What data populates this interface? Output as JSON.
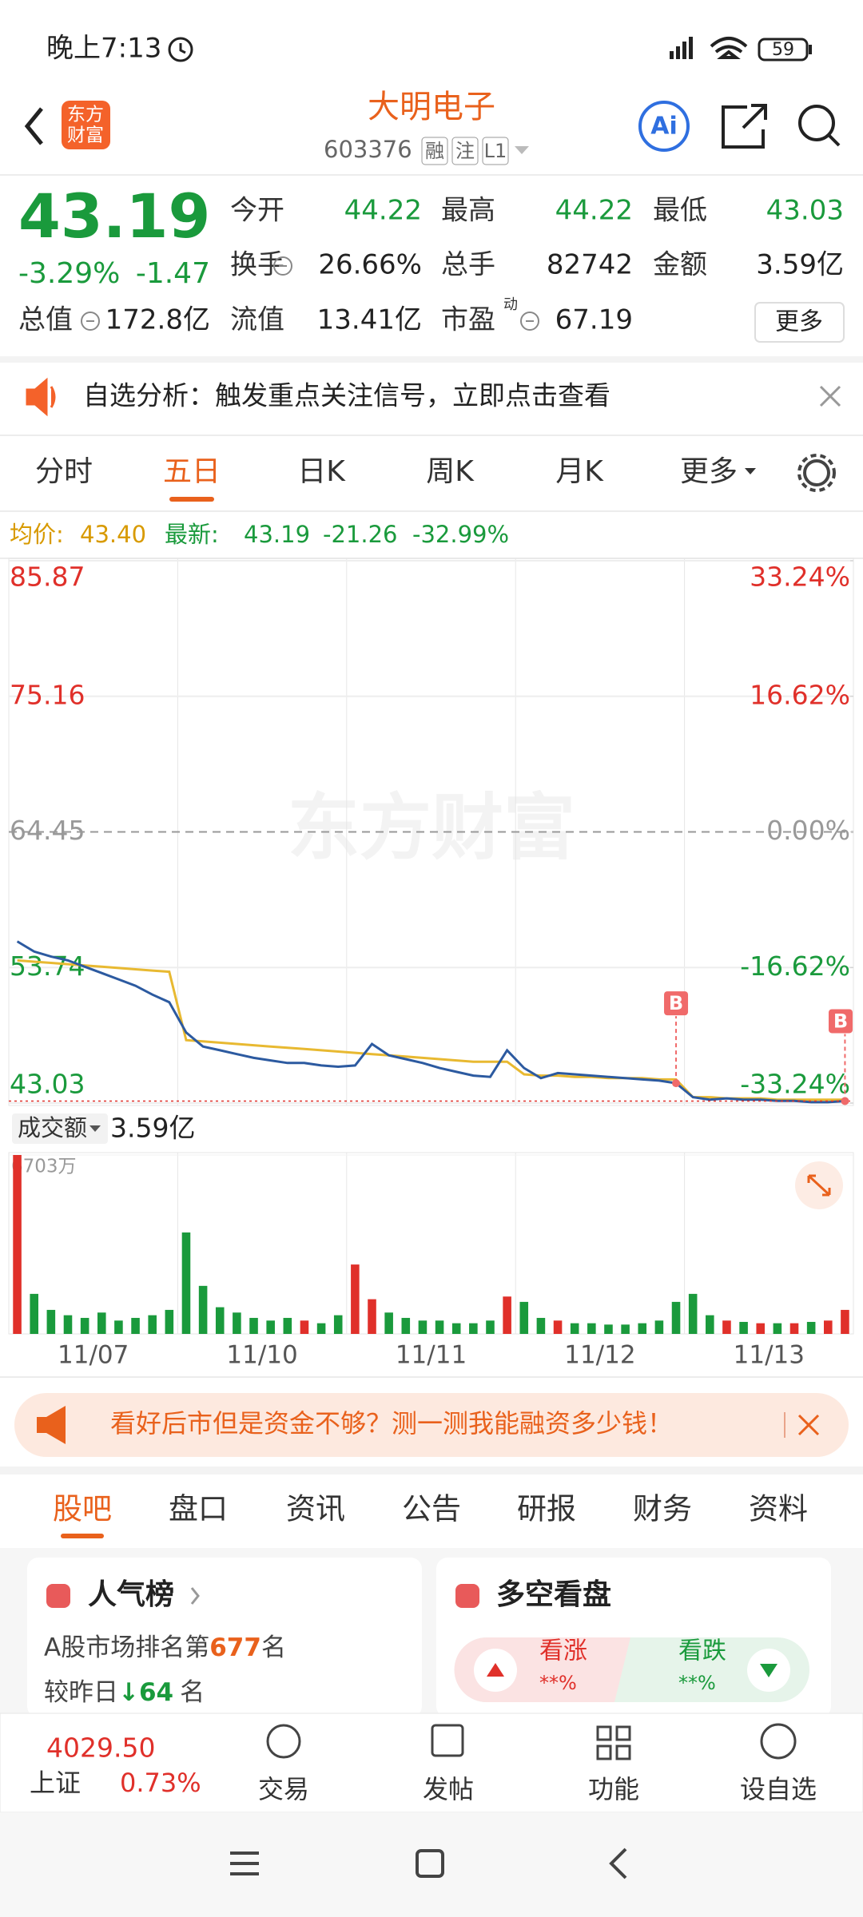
{
  "status_bar": {
    "time": "晚上7:13",
    "battery": "59"
  },
  "header": {
    "logo": [
      "东方",
      "财富"
    ],
    "title": "大明电子",
    "code": "603376",
    "badges": [
      "融",
      "注",
      "L1"
    ],
    "ai": "Ai"
  },
  "quote": {
    "price": "43.19",
    "change_pct": "-3.29%",
    "change": "-1.47",
    "fields": [
      {
        "label": "今开",
        "value": "44.22"
      },
      {
        "label": "最高",
        "value": "44.22"
      },
      {
        "label": "最低",
        "value": "43.03"
      },
      {
        "label": "换手",
        "value": "26.66%"
      },
      {
        "label": "总手",
        "value": "82742"
      },
      {
        "label": "金额",
        "value": "3.59亿"
      },
      {
        "label": "总值",
        "value": "172.8亿"
      },
      {
        "label": "流值",
        "value": "13.41亿"
      },
      {
        "label": "市盈",
        "value": "67.19"
      }
    ],
    "pe_sup": "动",
    "more": "更多"
  },
  "notice": {
    "text": "自选分析：触发重点关注信号，立即点击查看"
  },
  "chart_tabs": [
    "分时",
    "五日",
    "日K",
    "周K",
    "月K",
    "更多"
  ],
  "summary": {
    "avg_label": "均价:",
    "avg": "43.40",
    "last_label": "最新:",
    "last": "43.19",
    "change": "-21.26",
    "change_pct": "-32.99%"
  },
  "chart_data": [
    {
      "type": "line",
      "watermark": "东方财富",
      "ylim": [
        43.03,
        85.87
      ],
      "yticks": [
        85.87,
        75.16,
        64.45,
        53.74,
        43.03
      ],
      "y2lim": [
        -33.24,
        33.24
      ],
      "y2ticks": [
        {
          "value": 33.24,
          "label": "33.24%"
        },
        {
          "value": 16.62,
          "label": "16.62%"
        },
        {
          "value": 0,
          "label": "0.00%"
        },
        {
          "value": -16.62,
          "label": "-16.62%"
        },
        {
          "value": -33.24,
          "label": "-33.24%"
        }
      ],
      "grid": true,
      "series": [
        {
          "name": "最新",
          "color": "#2c5aa0",
          "values": [
            55.8,
            55.0,
            54.6,
            54.3,
            53.8,
            53.3,
            52.8,
            52.3,
            51.6,
            51.0,
            48.6,
            47.5,
            47.2,
            46.9,
            46.6,
            46.4,
            46.2,
            46.2,
            46.0,
            45.9,
            46.0,
            47.7,
            46.8,
            46.5,
            46.2,
            45.8,
            45.5,
            45.2,
            45.1,
            47.2,
            45.8,
            45.0,
            45.4,
            45.3,
            45.2,
            45.1,
            45.0,
            44.9,
            44.8,
            44.6,
            43.5,
            43.3,
            43.4,
            43.3,
            43.3,
            43.2,
            43.2,
            43.1,
            43.1,
            43.19
          ]
        },
        {
          "name": "均价",
          "color": "#e8b931",
          "values": [
            54.3,
            54.2,
            54.1,
            54.0,
            53.9,
            53.8,
            53.7,
            53.6,
            53.5,
            53.4,
            48.0,
            47.9,
            47.8,
            47.7,
            47.6,
            47.5,
            47.4,
            47.3,
            47.2,
            47.1,
            47.0,
            46.9,
            46.8,
            46.7,
            46.6,
            46.5,
            46.4,
            46.3,
            46.3,
            46.3,
            45.3,
            45.2,
            45.2,
            45.1,
            45.1,
            45.0,
            45.0,
            45.0,
            44.9,
            44.9,
            43.5,
            43.5,
            43.4,
            43.4,
            43.4,
            43.3,
            43.3,
            43.3,
            43.3,
            43.3
          ]
        }
      ],
      "annotations": [
        {
          "label": "B",
          "index": 39
        },
        {
          "label": "B",
          "index": 49
        }
      ]
    },
    {
      "type": "bar",
      "label": "成交额",
      "total": "3.59亿",
      "up_color": "#e0302a",
      "down_color": "#1a9a3c",
      "ylim": [
        0,
        6703
      ],
      "yticks": [
        {
          "value": 6703,
          "label": "6703万"
        }
      ],
      "values": [
        6703,
        1500,
        900,
        700,
        600,
        800,
        500,
        600,
        700,
        900,
        3800,
        1800,
        1000,
        800,
        600,
        500,
        600,
        500,
        400,
        700,
        2600,
        1300,
        800,
        600,
        500,
        500,
        400,
        400,
        500,
        1400,
        1200,
        600,
        500,
        400,
        400,
        350,
        350,
        400,
        500,
        1200,
        1500,
        700,
        500,
        450,
        400,
        400,
        400,
        450,
        500,
        900
      ],
      "day_labels": [
        "11/07",
        "11/10",
        "11/11",
        "11/12",
        "11/13"
      ]
    }
  ],
  "ad": {
    "text": "看好后市但是资金不够？测一测我能融资多少钱！"
  },
  "info_tabs": [
    "股吧",
    "盘口",
    "资讯",
    "公告",
    "研报",
    "财务",
    "资料"
  ],
  "cards": {
    "popularity": {
      "title": "人气榜",
      "rank_prefix": "A股市场排名第",
      "rank": "677",
      "rank_suffix": "名",
      "change_prefix": "较昨日",
      "change": "64",
      "change_suffix": "名"
    },
    "sentiment": {
      "title": "多空看盘",
      "up": "看涨",
      "up_value": "**%",
      "down": "看跌",
      "down_value": "**%"
    }
  },
  "bottom_bar": {
    "index_value": "4029.50",
    "index_name": "上证",
    "index_change": "0.73%",
    "items": [
      "交易",
      "发帖",
      "功能",
      "设自选"
    ]
  }
}
